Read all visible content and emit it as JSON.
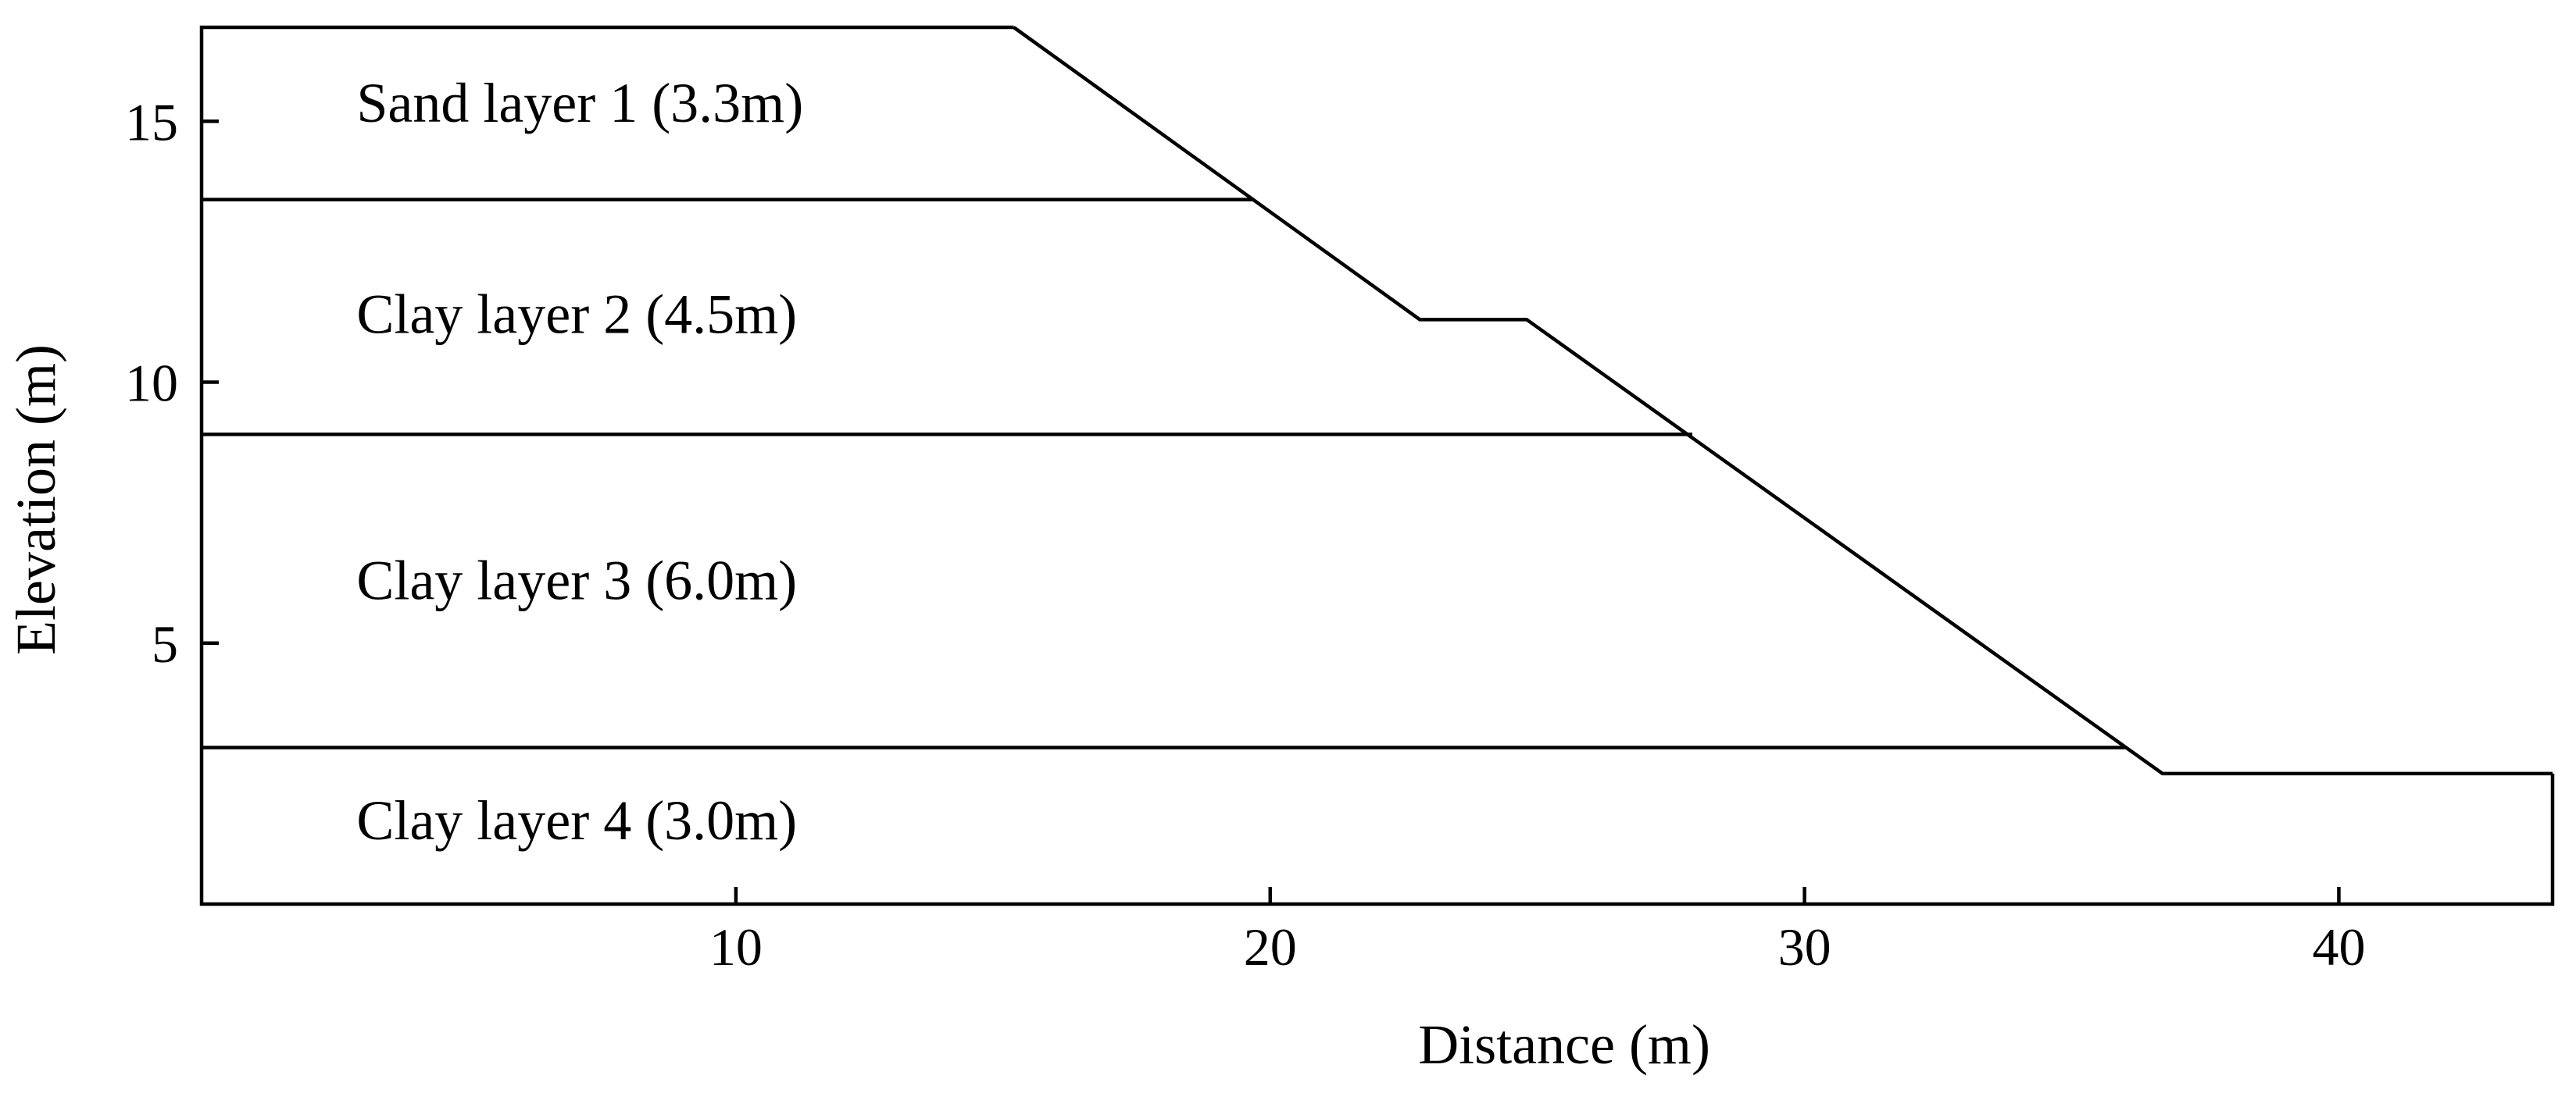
{
  "chart_data": {
    "type": "cross-section",
    "title": "",
    "xlabel": "Distance (m)",
    "ylabel": "Elevation (m)",
    "xlim": [
      0,
      44
    ],
    "ylim": [
      0,
      16.8
    ],
    "x_ticks": [
      10,
      20,
      30,
      40
    ],
    "y_ticks": [
      5,
      10,
      15
    ],
    "slope_profile": [
      {
        "x": 15.2,
        "y": 16.8
      },
      {
        "x": 22.8,
        "y": 11.2
      },
      {
        "x": 24.8,
        "y": 11.2
      },
      {
        "x": 36.7,
        "y": 2.5
      },
      {
        "x": 44.0,
        "y": 2.5
      }
    ],
    "layer_boundaries": [
      {
        "y": 13.5,
        "x_end": 19.7
      },
      {
        "y": 9.0,
        "x_end": 27.9
      },
      {
        "y": 3.0,
        "x_end": 36.0
      }
    ],
    "layers": [
      {
        "label": "Sand layer 1 (3.3m)",
        "label_y": 15.35
      },
      {
        "label": "Clay layer 2 (4.5m)",
        "label_y": 11.3
      },
      {
        "label": "Clay layer 3 (6.0m)",
        "label_y": 6.2
      },
      {
        "label": "Clay layer 4 (3.0m)",
        "label_y": 1.6
      }
    ]
  }
}
